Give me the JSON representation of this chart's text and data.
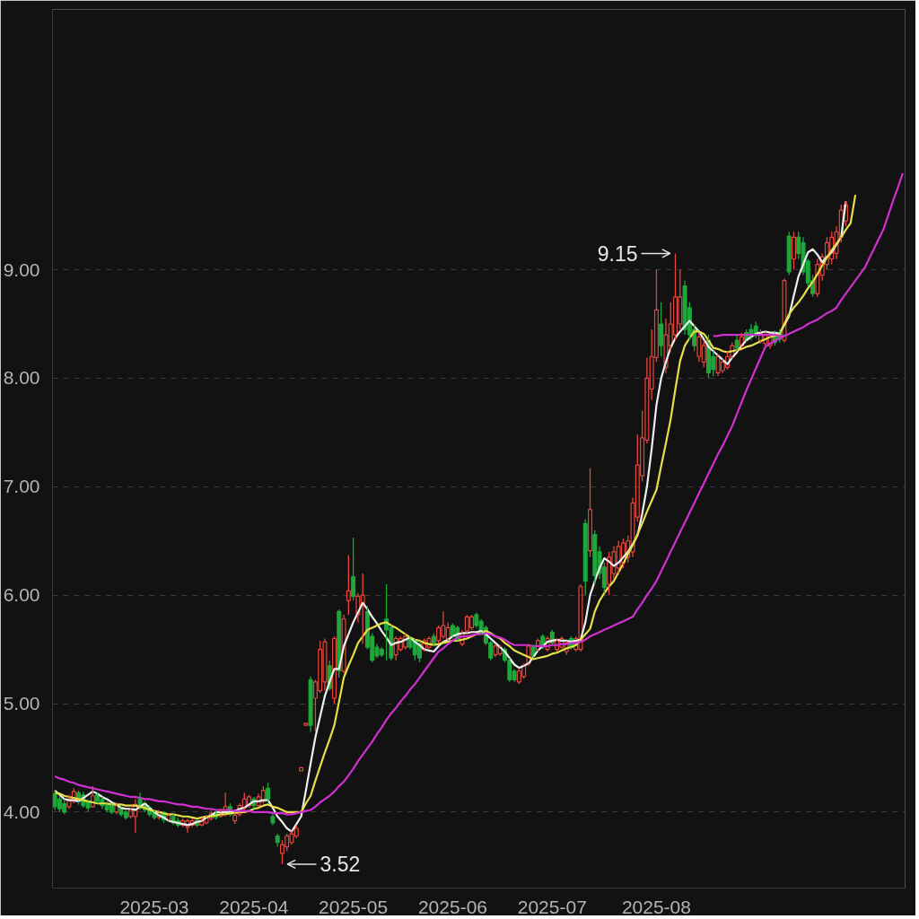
{
  "chart_data": {
    "type": "candlestick",
    "categories": [
      null,
      null,
      null,
      null,
      null,
      null,
      null,
      null,
      null,
      null,
      null,
      null,
      null,
      null,
      null,
      null,
      null,
      null,
      null,
      null,
      null,
      "2025-03",
      null,
      null,
      null,
      null,
      null,
      null,
      null,
      null,
      null,
      null,
      null,
      null,
      null,
      null,
      null,
      null,
      null,
      null,
      null,
      null,
      "2025-04",
      null,
      null,
      null,
      null,
      null,
      null,
      null,
      null,
      null,
      null,
      null,
      null,
      null,
      null,
      null,
      null,
      null,
      null,
      null,
      null,
      "2025-05",
      null,
      null,
      null,
      null,
      null,
      null,
      null,
      null,
      null,
      null,
      null,
      null,
      null,
      null,
      null,
      null,
      null,
      null,
      null,
      null,
      "2025-06",
      null,
      null,
      null,
      null,
      null,
      null,
      null,
      null,
      null,
      null,
      null,
      null,
      null,
      null,
      null,
      null,
      null,
      null,
      null,
      null,
      "2025-07",
      null,
      null,
      null,
      null,
      null,
      null,
      null,
      null,
      null,
      null,
      null,
      null,
      null,
      null,
      null,
      null,
      null,
      null,
      null,
      null,
      null,
      "2025-08",
      null,
      null,
      null,
      null,
      null,
      null,
      null,
      null,
      null,
      null,
      null,
      null,
      null,
      null,
      null,
      null,
      null,
      null,
      null,
      null,
      null,
      null,
      null,
      null,
      null,
      null,
      null,
      null,
      null,
      null,
      null,
      null,
      null,
      null,
      null,
      null,
      null,
      null,
      null,
      null,
      null,
      null,
      null,
      null,
      null,
      null,
      null,
      null,
      null,
      null,
      null,
      null
    ],
    "ohlc": [
      [
        4.17,
        4.2,
        4.02,
        4.05
      ],
      [
        4.12,
        4.15,
        4.0,
        4.03
      ],
      [
        4.08,
        4.12,
        3.98,
        4.0
      ],
      [
        4.05,
        4.16,
        4.03,
        4.12
      ],
      [
        4.1,
        4.22,
        4.08,
        4.19
      ],
      [
        4.18,
        4.2,
        4.07,
        4.1
      ],
      [
        4.16,
        4.19,
        4.04,
        4.06
      ],
      [
        4.1,
        4.12,
        4.01,
        4.04
      ],
      [
        4.05,
        4.24,
        4.04,
        4.15
      ],
      [
        4.16,
        4.18,
        4.08,
        4.1
      ],
      [
        4.12,
        4.14,
        4.03,
        4.06
      ],
      [
        4.08,
        4.1,
        4.0,
        4.02
      ],
      [
        4.06,
        4.08,
        3.98,
        4.0
      ],
      [
        4.0,
        4.09,
        3.98,
        4.06
      ],
      [
        4.04,
        4.06,
        3.96,
        3.98
      ],
      [
        4.0,
        4.02,
        3.93,
        3.95
      ],
      [
        3.96,
        4.04,
        3.94,
        4.02
      ],
      [
        3.96,
        4.12,
        3.81,
        4.07
      ],
      [
        4.12,
        4.18,
        4.02,
        4.04
      ],
      [
        4.08,
        4.1,
        4.0,
        4.02
      ],
      [
        4.04,
        4.06,
        3.96,
        3.98
      ],
      [
        4.0,
        4.02,
        3.93,
        3.95
      ],
      [
        3.95,
        4.02,
        3.93,
        4.0
      ],
      [
        3.99,
        4.01,
        3.9,
        3.93
      ],
      [
        3.93,
        3.99,
        3.91,
        3.97
      ],
      [
        3.96,
        3.98,
        3.88,
        3.9
      ],
      [
        3.92,
        3.95,
        3.86,
        3.88
      ],
      [
        3.88,
        3.94,
        3.86,
        3.92
      ],
      [
        3.86,
        3.94,
        3.81,
        3.92
      ],
      [
        3.88,
        3.94,
        3.86,
        3.92
      ],
      [
        3.92,
        3.93,
        3.86,
        3.88
      ],
      [
        3.88,
        3.95,
        3.87,
        3.92
      ],
      [
        3.9,
        3.97,
        3.89,
        3.95
      ],
      [
        3.94,
        4.02,
        3.92,
        3.99
      ],
      [
        3.99,
        4.01,
        3.93,
        3.95
      ],
      [
        3.96,
        4.03,
        3.95,
        4.0
      ],
      [
        3.98,
        4.18,
        3.96,
        4.05
      ],
      [
        4.05,
        4.08,
        3.96,
        3.98
      ],
      [
        3.92,
        3.99,
        3.89,
        3.97
      ],
      [
        3.98,
        4.08,
        3.96,
        4.06
      ],
      [
        4.04,
        4.18,
        4.02,
        4.12
      ],
      [
        4.06,
        4.16,
        4.04,
        4.14
      ],
      [
        4.12,
        4.14,
        4.03,
        4.06
      ],
      [
        4.06,
        4.17,
        4.05,
        4.14
      ],
      [
        4.1,
        4.24,
        4.08,
        4.2
      ],
      [
        4.22,
        4.27,
        4.1,
        4.12
      ],
      [
        3.96,
        3.98,
        3.88,
        3.9
      ],
      [
        3.78,
        3.8,
        3.68,
        3.72
      ],
      [
        3.62,
        3.74,
        3.52,
        3.7
      ],
      [
        3.68,
        3.8,
        3.64,
        3.78
      ],
      [
        3.72,
        3.83,
        3.7,
        3.8
      ],
      [
        3.78,
        3.88,
        3.76,
        3.85
      ],
      [
        4.38,
        4.41,
        4.38,
        4.41
      ],
      [
        4.8,
        4.82,
        4.8,
        4.82
      ],
      [
        5.22,
        5.25,
        4.74,
        4.8
      ],
      [
        5.05,
        5.22,
        4.74,
        5.2
      ],
      [
        5.12,
        5.58,
        5.1,
        5.5
      ],
      [
        5.2,
        5.6,
        5.12,
        5.57
      ],
      [
        5.35,
        5.4,
        5.12,
        5.14
      ],
      [
        5.05,
        5.62,
        5.0,
        5.6
      ],
      [
        5.85,
        5.87,
        5.24,
        5.3
      ],
      [
        5.3,
        5.82,
        5.28,
        5.78
      ],
      [
        5.95,
        6.37,
        5.82,
        6.04
      ],
      [
        6.17,
        6.53,
        5.95,
        5.99
      ],
      [
        5.82,
        6.02,
        5.75,
        5.99
      ],
      [
        5.9,
        6.2,
        5.55,
        6.0
      ],
      [
        5.85,
        5.9,
        5.5,
        5.52
      ],
      [
        5.62,
        5.65,
        5.38,
        5.4
      ],
      [
        5.52,
        5.55,
        5.42,
        5.44
      ],
      [
        5.5,
        5.52,
        5.43,
        5.45
      ],
      [
        5.78,
        6.1,
        5.4,
        5.68
      ],
      [
        5.7,
        5.72,
        5.4,
        5.42
      ],
      [
        5.45,
        5.62,
        5.4,
        5.6
      ],
      [
        5.5,
        5.62,
        5.48,
        5.6
      ],
      [
        5.52,
        5.65,
        5.5,
        5.62
      ],
      [
        5.6,
        5.62,
        5.5,
        5.52
      ],
      [
        5.58,
        5.6,
        5.4,
        5.45
      ],
      [
        5.55,
        5.58,
        5.38,
        5.42
      ],
      [
        5.5,
        5.6,
        5.48,
        5.58
      ],
      [
        5.52,
        5.62,
        5.5,
        5.6
      ],
      [
        5.62,
        5.65,
        5.53,
        5.55
      ],
      [
        5.58,
        5.72,
        5.56,
        5.7
      ],
      [
        5.62,
        5.85,
        5.6,
        5.72
      ],
      [
        5.6,
        5.75,
        5.58,
        5.7
      ],
      [
        5.72,
        5.74,
        5.6,
        5.62
      ],
      [
        5.7,
        5.72,
        5.58,
        5.6
      ],
      [
        5.55,
        5.68,
        5.53,
        5.65
      ],
      [
        5.67,
        5.82,
        5.65,
        5.8
      ],
      [
        5.7,
        5.82,
        5.68,
        5.8
      ],
      [
        5.82,
        5.84,
        5.7,
        5.72
      ],
      [
        5.76,
        5.78,
        5.64,
        5.66
      ],
      [
        5.7,
        5.72,
        5.54,
        5.56
      ],
      [
        5.56,
        5.58,
        5.4,
        5.42
      ],
      [
        5.45,
        5.55,
        5.43,
        5.53
      ],
      [
        5.46,
        5.54,
        5.44,
        5.52
      ],
      [
        5.5,
        5.52,
        5.38,
        5.4
      ],
      [
        5.4,
        5.42,
        5.2,
        5.22
      ],
      [
        5.3,
        5.32,
        5.2,
        5.22
      ],
      [
        5.2,
        5.32,
        5.18,
        5.3
      ],
      [
        5.25,
        5.37,
        5.23,
        5.35
      ],
      [
        5.37,
        5.55,
        5.35,
        5.53
      ],
      [
        5.52,
        5.54,
        5.42,
        5.44
      ],
      [
        5.5,
        5.6,
        5.48,
        5.58
      ],
      [
        5.62,
        5.64,
        5.5,
        5.52
      ],
      [
        5.5,
        5.62,
        5.48,
        5.6
      ],
      [
        5.66,
        5.68,
        5.54,
        5.56
      ],
      [
        5.5,
        5.6,
        5.48,
        5.58
      ],
      [
        5.52,
        5.62,
        5.5,
        5.6
      ],
      [
        5.48,
        5.58,
        5.45,
        5.56
      ],
      [
        5.6,
        5.62,
        5.5,
        5.52
      ],
      [
        5.5,
        5.62,
        5.48,
        5.6
      ],
      [
        5.5,
        6.1,
        5.48,
        6.08
      ],
      [
        6.66,
        6.7,
        6.0,
        6.13
      ],
      [
        6.41,
        7.17,
        6.35,
        6.79
      ],
      [
        6.56,
        6.6,
        6.1,
        6.18
      ],
      [
        6.4,
        6.45,
        6.15,
        6.2
      ],
      [
        6.26,
        6.3,
        6.02,
        6.07
      ],
      [
        6.1,
        6.4,
        6.0,
        6.35
      ],
      [
        6.2,
        6.45,
        6.15,
        6.4
      ],
      [
        6.25,
        6.5,
        6.2,
        6.45
      ],
      [
        6.3,
        6.52,
        6.25,
        6.48
      ],
      [
        6.35,
        6.55,
        6.3,
        6.5
      ],
      [
        6.4,
        6.9,
        6.35,
        6.85
      ],
      [
        6.72,
        7.48,
        6.68,
        7.2
      ],
      [
        7.1,
        7.7,
        7.05,
        7.45
      ],
      [
        7.43,
        8.19,
        7.4,
        8.0
      ],
      [
        7.9,
        8.45,
        7.8,
        8.2
      ],
      [
        8.19,
        9.0,
        8.15,
        8.63
      ],
      [
        8.5,
        8.7,
        8.2,
        8.3
      ],
      [
        8.1,
        8.55,
        8.05,
        8.4
      ],
      [
        8.3,
        8.7,
        8.25,
        8.5
      ],
      [
        8.4,
        9.15,
        8.35,
        8.75
      ],
      [
        8.5,
        9.0,
        8.45,
        8.75
      ],
      [
        8.85,
        8.9,
        8.4,
        8.45
      ],
      [
        8.65,
        8.7,
        8.35,
        8.4
      ],
      [
        8.45,
        8.5,
        8.25,
        8.3
      ],
      [
        8.2,
        8.42,
        8.15,
        8.38
      ],
      [
        8.15,
        8.35,
        8.1,
        8.3
      ],
      [
        8.35,
        8.4,
        8.0,
        8.05
      ],
      [
        8.2,
        8.25,
        8.02,
        8.08
      ],
      [
        8.05,
        8.22,
        8.02,
        8.2
      ],
      [
        8.07,
        8.18,
        8.05,
        8.15
      ],
      [
        8.1,
        8.25,
        8.08,
        8.2
      ],
      [
        8.2,
        8.33,
        8.18,
        8.3
      ],
      [
        8.35,
        8.4,
        8.25,
        8.28
      ],
      [
        8.3,
        8.42,
        8.28,
        8.38
      ],
      [
        8.42,
        8.45,
        8.33,
        8.35
      ],
      [
        8.45,
        8.5,
        8.35,
        8.38
      ],
      [
        8.48,
        8.52,
        8.37,
        8.4
      ],
      [
        8.35,
        8.45,
        8.32,
        8.42
      ],
      [
        8.32,
        8.43,
        8.3,
        8.4
      ],
      [
        8.3,
        8.4,
        8.27,
        8.38
      ],
      [
        8.42,
        8.44,
        8.3,
        8.33
      ],
      [
        8.42,
        8.45,
        8.33,
        8.36
      ],
      [
        8.35,
        8.92,
        8.33,
        8.9
      ],
      [
        9.31,
        9.35,
        8.95,
        8.98
      ],
      [
        9.1,
        9.35,
        9.0,
        9.3
      ],
      [
        9.3,
        9.35,
        9.1,
        9.15
      ],
      [
        9.25,
        9.3,
        8.95,
        8.98
      ],
      [
        9.08,
        9.1,
        8.85,
        8.88
      ],
      [
        8.9,
        8.95,
        8.75,
        8.78
      ],
      [
        8.78,
        9.1,
        8.75,
        9.05
      ],
      [
        8.95,
        9.15,
        8.9,
        9.12
      ],
      [
        9.05,
        9.3,
        9.0,
        9.25
      ],
      [
        9.1,
        9.35,
        9.05,
        9.3
      ],
      [
        9.15,
        9.4,
        9.1,
        9.35
      ],
      [
        9.3,
        9.6,
        9.25,
        9.55
      ],
      [
        9.45,
        9.63,
        9.4,
        9.6
      ],
      null,
      null,
      null,
      null,
      null,
      null,
      null,
      null,
      null,
      null,
      null,
      null
    ],
    "colors": [
      "#1fa83a",
      "#1fa83a",
      "#1fa83a",
      "#e8463c",
      "#e8463c",
      "#1fa83a",
      "#1fa83a",
      "#1fa83a",
      "#e8463c",
      "#1fa83a",
      "#1fa83a",
      "#1fa83a",
      "#1fa83a",
      "#e8463c",
      "#1fa83a",
      "#1fa83a",
      "#e8463c",
      "#e8463c",
      "#1fa83a",
      "#1fa83a",
      "#1fa83a",
      "#1fa83a",
      "#e8463c",
      "#1fa83a",
      "#e8463c",
      "#1fa83a",
      "#1fa83a",
      "#e8463c",
      "#e8463c",
      "#e8463c",
      "#1fa83a",
      "#e8463c",
      "#e8463c",
      "#e8463c",
      "#1fa83a",
      "#e8463c",
      "#e8463c",
      "#1fa83a",
      "#e8463c",
      "#e8463c",
      "#e8463c",
      "#e8463c",
      "#1fa83a",
      "#e8463c",
      "#e8463c",
      "#1fa83a",
      "#1fa83a",
      "#1fa83a",
      "#e8463c",
      "#e8463c",
      "#e8463c",
      "#e8463c",
      "#e8463c",
      "#e8463c",
      "#1fa83a",
      "#e8463c",
      "#e8463c",
      "#e8463c",
      "#1fa83a",
      "#e8463c",
      "#1fa83a",
      "#e8463c",
      "#e8463c",
      "#1fa83a",
      "#e8463c",
      "#e8463c",
      "#1fa83a",
      "#1fa83a",
      "#1fa83a",
      "#1fa83a",
      "#1fa83a",
      "#1fa83a",
      "#e8463c",
      "#e8463c",
      "#e8463c",
      "#1fa83a",
      "#1fa83a",
      "#1fa83a",
      "#e8463c",
      "#e8463c",
      "#1fa83a",
      "#e8463c",
      "#e8463c",
      "#e8463c",
      "#1fa83a",
      "#1fa83a",
      "#e8463c",
      "#e8463c",
      "#e8463c",
      "#1fa83a",
      "#1fa83a",
      "#1fa83a",
      "#1fa83a",
      "#e8463c",
      "#e8463c",
      "#1fa83a",
      "#1fa83a",
      "#1fa83a",
      "#e8463c",
      "#e8463c",
      "#e8463c",
      "#1fa83a",
      "#e8463c",
      "#1fa83a",
      "#e8463c",
      "#1fa83a",
      "#e8463c",
      "#e8463c",
      "#e8463c",
      "#1fa83a",
      "#e8463c",
      "#e8463c",
      "#1fa83a",
      "#e8463c",
      "#1fa83a",
      "#1fa83a",
      "#1fa83a",
      "#e8463c",
      "#e8463c",
      "#e8463c",
      "#e8463c",
      "#e8463c",
      "#e8463c",
      "#e8463c",
      "#e8463c",
      "#e8463c",
      "#e8463c",
      "#e8463c",
      "#1fa83a",
      "#e8463c",
      "#e8463c",
      "#e8463c",
      "#e8463c",
      "#1fa83a",
      "#1fa83a",
      "#1fa83a",
      "#e8463c",
      "#e8463c",
      "#1fa83a",
      "#1fa83a",
      "#e8463c",
      "#e8463c",
      "#e8463c",
      "#e8463c",
      "#1fa83a",
      "#e8463c",
      "#1fa83a",
      "#1fa83a",
      "#1fa83a",
      "#e8463c",
      "#e8463c",
      "#e8463c",
      "#1fa83a",
      "#1fa83a",
      "#e8463c",
      "#1fa83a",
      "#e8463c",
      "#1fa83a",
      "#1fa83a",
      "#1fa83a",
      "#1fa83a",
      "#e8463c",
      "#e8463c",
      "#e8463c",
      "#e8463c",
      "#e8463c",
      "#e8463c",
      "#e8463c",
      null,
      null,
      null,
      null,
      null,
      null,
      null,
      null,
      null,
      null,
      null,
      null
    ],
    "series": [
      {
        "type": "line",
        "color": "#eeeeee",
        "values": [
          4.2,
          4.16,
          4.12,
          4.11,
          4.11,
          4.1,
          4.13,
          4.16,
          4.19,
          4.17,
          4.14,
          4.12,
          4.09,
          4.07,
          4.04,
          4.03,
          4.03,
          4.02,
          4.05,
          4.08,
          4.04,
          4.0,
          3.97,
          3.95,
          3.92,
          3.91,
          3.9,
          3.89,
          3.88,
          3.89,
          3.91,
          3.92,
          3.95,
          3.97,
          4.0,
          4.0,
          4.0,
          4.0,
          4.01,
          4.03,
          4.04,
          4.07,
          4.1,
          4.1,
          4.11,
          4.11,
          4.04,
          3.96,
          3.91,
          3.85,
          3.82,
          3.89,
          3.96,
          4.2,
          4.45,
          4.69,
          4.88,
          5.07,
          5.2,
          5.32,
          5.32,
          5.53,
          5.64,
          5.75,
          5.84,
          5.93,
          5.87,
          5.8,
          5.74,
          5.67,
          5.61,
          5.54,
          5.56,
          5.57,
          5.59,
          5.61,
          5.57,
          5.54,
          5.5,
          5.49,
          5.48,
          5.53,
          5.57,
          5.59,
          5.62,
          5.64,
          5.65,
          5.65,
          5.66,
          5.66,
          5.67,
          5.64,
          5.6,
          5.56,
          5.52,
          5.48,
          5.42,
          5.36,
          5.33,
          5.35,
          5.37,
          5.43,
          5.49,
          5.53,
          5.57,
          5.58,
          5.59,
          5.58,
          5.58,
          5.57,
          5.58,
          5.59,
          5.75,
          6.0,
          6.13,
          6.25,
          6.34,
          6.31,
          6.27,
          6.3,
          6.35,
          6.4,
          6.47,
          6.55,
          6.75,
          7.0,
          7.35,
          7.75,
          8.0,
          8.15,
          8.28,
          8.37,
          8.43,
          8.48,
          8.53,
          8.48,
          8.43,
          8.36,
          8.29,
          8.25,
          8.21,
          8.17,
          8.13,
          8.19,
          8.24,
          8.3,
          8.35,
          8.38,
          8.41,
          8.42,
          8.43,
          8.42,
          8.42,
          8.41,
          8.49,
          8.57,
          8.76,
          8.94,
          9.05,
          9.16,
          9.19,
          9.14,
          9.07,
          9.12,
          9.16,
          9.23,
          9.3,
          9.63,
          null,
          null,
          null,
          null,
          null,
          null,
          null,
          null,
          null,
          null,
          null,
          null
        ]
      },
      {
        "type": "line",
        "color": "#e6df48",
        "values": [
          4.18,
          4.17,
          4.15,
          4.14,
          4.13,
          4.12,
          4.11,
          4.1,
          4.09,
          4.08,
          4.08,
          4.08,
          4.07,
          4.07,
          4.07,
          4.06,
          4.06,
          4.06,
          4.05,
          4.04,
          4.02,
          4.01,
          4.0,
          3.99,
          3.98,
          3.98,
          3.97,
          3.96,
          3.96,
          3.95,
          3.94,
          3.95,
          3.96,
          3.96,
          3.97,
          3.98,
          3.98,
          3.99,
          3.99,
          4.0,
          4.0,
          4.01,
          4.03,
          4.04,
          4.06,
          4.07,
          4.05,
          4.04,
          4.02,
          4.0,
          4.0,
          4.0,
          4.0,
          4.08,
          4.15,
          4.29,
          4.42,
          4.55,
          4.67,
          4.8,
          5.02,
          5.24,
          5.35,
          5.45,
          5.56,
          5.62,
          5.68,
          5.7,
          5.72,
          5.74,
          5.75,
          5.72,
          5.7,
          5.67,
          5.64,
          5.61,
          5.59,
          5.58,
          5.56,
          5.55,
          5.54,
          5.55,
          5.56,
          5.57,
          5.58,
          5.58,
          5.59,
          5.6,
          5.62,
          5.64,
          5.65,
          5.67,
          5.65,
          5.62,
          5.6,
          5.56,
          5.53,
          5.49,
          5.47,
          5.45,
          5.43,
          5.41,
          5.42,
          5.43,
          5.44,
          5.46,
          5.47,
          5.49,
          5.51,
          5.52,
          5.54,
          5.59,
          5.64,
          5.69,
          5.85,
          5.95,
          6.02,
          6.08,
          6.13,
          6.21,
          6.29,
          6.38,
          6.46,
          6.56,
          6.66,
          6.77,
          6.87,
          6.97,
          7.19,
          7.4,
          7.62,
          7.9,
          8.16,
          8.3,
          8.37,
          8.43,
          8.43,
          8.41,
          8.35,
          8.28,
          8.27,
          8.25,
          8.24,
          8.25,
          8.26,
          8.27,
          8.29,
          8.3,
          8.32,
          8.34,
          8.36,
          8.38,
          8.39,
          8.41,
          8.5,
          8.59,
          8.65,
          8.7,
          8.76,
          8.83,
          8.89,
          8.96,
          9.04,
          9.11,
          9.18,
          9.24,
          9.3,
          9.37,
          9.43,
          9.69,
          null,
          null,
          null,
          null,
          null,
          null,
          null,
          null,
          null,
          null
        ]
      },
      {
        "type": "line",
        "color": "#d12fd1",
        "values": [
          4.33,
          4.31,
          4.3,
          4.28,
          4.27,
          4.25,
          4.24,
          4.23,
          4.22,
          4.21,
          4.2,
          4.19,
          4.18,
          4.17,
          4.16,
          4.15,
          4.14,
          4.14,
          4.13,
          4.12,
          4.12,
          4.11,
          4.1,
          4.1,
          4.09,
          4.08,
          4.07,
          4.07,
          4.06,
          4.05,
          4.05,
          4.04,
          4.03,
          4.03,
          4.02,
          4.02,
          4.02,
          4.02,
          4.01,
          4.01,
          4.01,
          4.01,
          4.0,
          4.0,
          4.0,
          4.0,
          3.99,
          3.99,
          3.99,
          3.98,
          3.98,
          3.99,
          4.0,
          4.01,
          4.02,
          4.05,
          4.09,
          4.12,
          4.15,
          4.19,
          4.24,
          4.28,
          4.34,
          4.4,
          4.47,
          4.53,
          4.59,
          4.65,
          4.72,
          4.78,
          4.85,
          4.91,
          4.96,
          5.02,
          5.07,
          5.13,
          5.18,
          5.24,
          5.3,
          5.36,
          5.42,
          5.48,
          5.51,
          5.55,
          5.58,
          5.61,
          5.62,
          5.62,
          5.63,
          5.64,
          5.64,
          5.65,
          5.64,
          5.62,
          5.61,
          5.59,
          5.56,
          5.54,
          5.54,
          5.54,
          5.54,
          5.53,
          5.53,
          5.53,
          5.53,
          5.54,
          5.54,
          5.55,
          5.55,
          5.56,
          5.56,
          5.57,
          5.59,
          5.62,
          5.64,
          5.66,
          5.68,
          5.7,
          5.72,
          5.74,
          5.76,
          5.78,
          5.8,
          5.87,
          5.93,
          6.0,
          6.06,
          6.13,
          6.22,
          6.31,
          6.4,
          6.49,
          6.58,
          6.67,
          6.76,
          6.85,
          6.94,
          7.03,
          7.12,
          7.21,
          7.3,
          7.38,
          7.47,
          7.56,
          7.67,
          7.78,
          7.89,
          7.99,
          8.09,
          8.19,
          8.29,
          8.32,
          8.34,
          8.37,
          8.39,
          8.41,
          8.43,
          8.45,
          8.47,
          8.5,
          8.52,
          8.54,
          8.57,
          8.6,
          8.62,
          8.65,
          8.72,
          8.78,
          8.84,
          8.9,
          8.96,
          9.02,
          9.11,
          9.2,
          9.29,
          9.38,
          9.51,
          9.64,
          9.76,
          9.89
        ]
      },
      {
        "type": "line",
        "color": "#d12fd1",
        "values": [
          null,
          null,
          null,
          null,
          null,
          null,
          null,
          null,
          null,
          null,
          null,
          null,
          null,
          null,
          null,
          null,
          null,
          null,
          null,
          null,
          null,
          null,
          null,
          null,
          null,
          null,
          null,
          null,
          null,
          null,
          null,
          null,
          null,
          null,
          null,
          null,
          null,
          null,
          null,
          null,
          null,
          null,
          null,
          null,
          null,
          null,
          null,
          null,
          null,
          null,
          null,
          null,
          null,
          null,
          null,
          null,
          null,
          null,
          null,
          null,
          null,
          null,
          null,
          null,
          null,
          null,
          null,
          null,
          null,
          null,
          null,
          null,
          null,
          null,
          null,
          null,
          null,
          null,
          null,
          null,
          null,
          null,
          null,
          null,
          null,
          null,
          null,
          null,
          null,
          null,
          null,
          null,
          null,
          null,
          null,
          null,
          null,
          null,
          null,
          null,
          null,
          null,
          null,
          null,
          null,
          null,
          null,
          null,
          null,
          null,
          null,
          null,
          null,
          null,
          null,
          null,
          null,
          null,
          null,
          null,
          null,
          null,
          null,
          null,
          null,
          null,
          null,
          null,
          null,
          null,
          null,
          null,
          null,
          null,
          null,
          null,
          null,
          null,
          null,
          8.39,
          8.39,
          8.4,
          8.4,
          8.4,
          8.4,
          8.4,
          8.4,
          8.4,
          8.4,
          8.4,
          8.4,
          8.4,
          8.4,
          8.39,
          8.39,
          null,
          null,
          null,
          null,
          null,
          null,
          null,
          null,
          null,
          null,
          null,
          null,
          null,
          null,
          null,
          null,
          null,
          null,
          null,
          null,
          null,
          null,
          null,
          null,
          null
        ]
      }
    ],
    "ylim": [
      3.3,
      11.4
    ],
    "yticks": [
      {
        "value": 4,
        "label": "4.00"
      },
      {
        "value": 5,
        "label": "5.00"
      },
      {
        "value": 6,
        "label": "6.00"
      },
      {
        "value": 7,
        "label": "7.00"
      },
      {
        "value": 8,
        "label": "8.00"
      },
      {
        "value": 9,
        "label": "9.00"
      }
    ],
    "grid": "y",
    "annotations": [
      "9.15",
      "3.52"
    ]
  }
}
